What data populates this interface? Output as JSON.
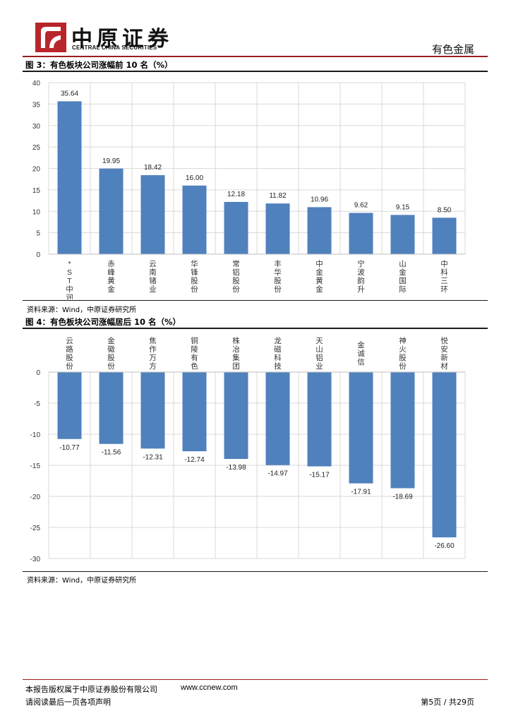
{
  "header": {
    "logo_cn": "中原证券",
    "logo_en": "CENTRAL CHINA SECURITIES",
    "section": "有色金属"
  },
  "figure3": {
    "title": "图 3：有色板块公司涨幅前 10 名（%）",
    "source": "资料来源：Wind，中原证券研究所"
  },
  "figure4": {
    "title": "图 4：有色板块公司涨幅居后 10 名（%）",
    "source": "资料来源：Wind，中原证券研究所"
  },
  "chart_data": [
    {
      "type": "bar",
      "categories": [
        "*ST中润",
        "赤峰黄金",
        "云南锗业",
        "华锋股份",
        "常铝股份",
        "丰华股份",
        "中金黄金",
        "宁波韵升",
        "山金国际",
        "中科三环"
      ],
      "values": [
        35.64,
        19.95,
        18.42,
        16.0,
        12.18,
        11.82,
        10.96,
        9.62,
        9.15,
        8.5
      ],
      "value_labels": [
        "35.64",
        "19.95",
        "18.42",
        "16.00",
        "12.18",
        "11.82",
        "10.96",
        "9.62",
        "9.15",
        "8.50"
      ],
      "yticks": [
        "0",
        "5",
        "10",
        "15",
        "20",
        "25",
        "30",
        "35",
        "40"
      ],
      "ylim": [
        0,
        40
      ],
      "bar_color": "#4f81bd",
      "grid": true
    },
    {
      "type": "bar",
      "categories": [
        "云路股份",
        "金徽股份",
        "焦作万方",
        "铜陵有色",
        "株冶集团",
        "龙磁科技",
        "天山铝业",
        "金诚信",
        "神火股份",
        "悦安新材"
      ],
      "values": [
        -10.77,
        -11.56,
        -12.31,
        -12.74,
        -13.98,
        -14.97,
        -15.17,
        -17.91,
        -18.69,
        -26.6
      ],
      "value_labels": [
        "-10.77",
        "-11.56",
        "-12.31",
        "-12.74",
        "-13.98",
        "-14.97",
        "-15.17",
        "-17.91",
        "-18.69",
        "-26.60"
      ],
      "yticks": [
        "0",
        "-5",
        "-10",
        "-15",
        "-20",
        "-25",
        "-30"
      ],
      "ylim": [
        -30,
        0
      ],
      "bar_color": "#4f81bd",
      "grid": true
    }
  ],
  "footer": {
    "copyright": "本报告版权属于中原证券股份有限公司",
    "url": "www.ccnew.com",
    "disclaimer": "请阅读最后一页各项声明",
    "page": "第5页 / 共29页"
  }
}
